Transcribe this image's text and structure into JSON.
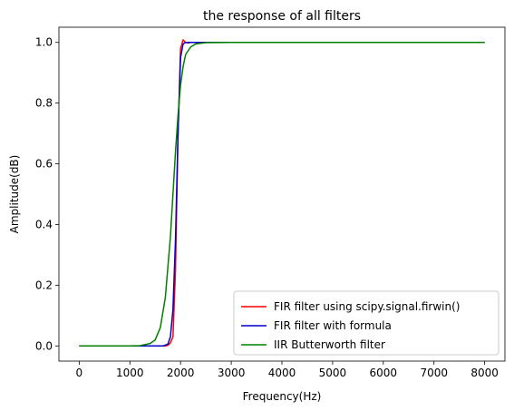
{
  "chart_data": {
    "type": "line",
    "title": "the response of all filters",
    "xlabel": "Frequency(Hz)",
    "ylabel": "Amplitude(dB)",
    "xlim": [
      -400,
      8400
    ],
    "ylim": [
      -0.05,
      1.05
    ],
    "xticks": [
      0,
      1000,
      2000,
      3000,
      4000,
      5000,
      6000,
      7000,
      8000
    ],
    "xtick_labels": [
      "0",
      "1000",
      "2000",
      "3000",
      "4000",
      "5000",
      "6000",
      "7000",
      "8000"
    ],
    "yticks": [
      0.0,
      0.2,
      0.4,
      0.6,
      0.8,
      1.0
    ],
    "ytick_labels": [
      "0.0",
      "0.2",
      "0.4",
      "0.6",
      "0.8",
      "1.0"
    ],
    "grid": false,
    "legend_position": "lower-right",
    "series": [
      {
        "name": "FIR filter using scipy.signal.firwin()",
        "color": "#ff0000",
        "x": [
          0,
          1700,
          1750,
          1800,
          1850,
          1900,
          1950,
          2000,
          2050,
          2100,
          2150,
          2200,
          3000,
          8000
        ],
        "y": [
          0,
          0,
          0.002,
          0.01,
          0.03,
          0.25,
          0.7,
          0.98,
          1.008,
          1.0,
          0.998,
          1.0,
          1.0,
          1.0
        ]
      },
      {
        "name": "FIR filter with formula",
        "color": "#0000cc",
        "x": [
          0,
          1650,
          1700,
          1750,
          1800,
          1850,
          1900,
          1950,
          2000,
          2050,
          2100,
          2150,
          2250,
          3000,
          8000
        ],
        "y": [
          0,
          0,
          0.003,
          0.006,
          0.03,
          0.12,
          0.35,
          0.7,
          0.95,
          0.995,
          1.0,
          1.0,
          1.0,
          1.0,
          1.0
        ]
      },
      {
        "name": "IIR Butterworth filter",
        "color": "#008000",
        "x": [
          0,
          1000,
          1200,
          1400,
          1500,
          1600,
          1700,
          1800,
          1850,
          1900,
          1950,
          2000,
          2050,
          2100,
          2200,
          2300,
          2500,
          3000,
          8000
        ],
        "y": [
          0,
          0,
          0.001,
          0.008,
          0.02,
          0.06,
          0.16,
          0.36,
          0.5,
          0.64,
          0.76,
          0.86,
          0.92,
          0.96,
          0.985,
          0.995,
          0.999,
          1.0,
          1.0
        ]
      }
    ]
  }
}
